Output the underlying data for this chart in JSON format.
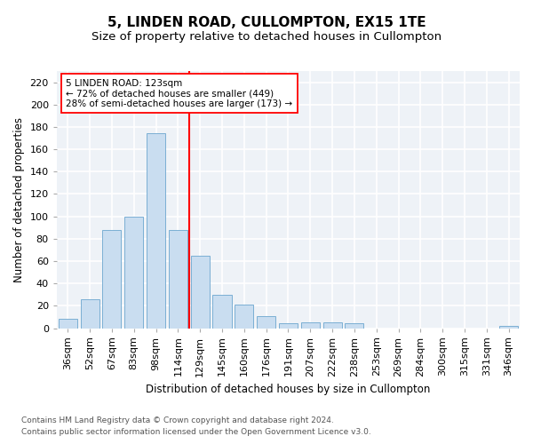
{
  "title": "5, LINDEN ROAD, CULLOMPTON, EX15 1TE",
  "subtitle": "Size of property relative to detached houses in Cullompton",
  "xlabel": "Distribution of detached houses by size in Cullompton",
  "ylabel": "Number of detached properties",
  "categories": [
    "36sqm",
    "52sqm",
    "67sqm",
    "83sqm",
    "98sqm",
    "114sqm",
    "129sqm",
    "145sqm",
    "160sqm",
    "176sqm",
    "191sqm",
    "207sqm",
    "222sqm",
    "238sqm",
    "253sqm",
    "269sqm",
    "284sqm",
    "300sqm",
    "315sqm",
    "331sqm",
    "346sqm"
  ],
  "values": [
    8,
    26,
    88,
    100,
    174,
    88,
    65,
    30,
    21,
    11,
    4,
    5,
    5,
    4,
    0,
    0,
    0,
    0,
    0,
    0,
    2
  ],
  "bar_color": "#c9ddf0",
  "bar_edge_color": "#7bafd4",
  "vline_x": 5.5,
  "vline_color": "red",
  "annotation_line1": "5 LINDEN ROAD: 123sqm",
  "annotation_line2": "← 72% of detached houses are smaller (449)",
  "annotation_line3": "28% of semi-detached houses are larger (173) →",
  "annotation_box_color": "white",
  "annotation_box_edge_color": "red",
  "ylim": [
    0,
    230
  ],
  "yticks": [
    0,
    20,
    40,
    60,
    80,
    100,
    120,
    140,
    160,
    180,
    200,
    220
  ],
  "footer1": "Contains HM Land Registry data © Crown copyright and database right 2024.",
  "footer2": "Contains public sector information licensed under the Open Government Licence v3.0.",
  "background_color": "#eef2f7",
  "grid_color": "white",
  "title_fontsize": 11,
  "subtitle_fontsize": 9.5,
  "axis_label_fontsize": 8.5,
  "tick_fontsize": 8,
  "footer_fontsize": 6.5,
  "annotation_fontsize": 7.5
}
